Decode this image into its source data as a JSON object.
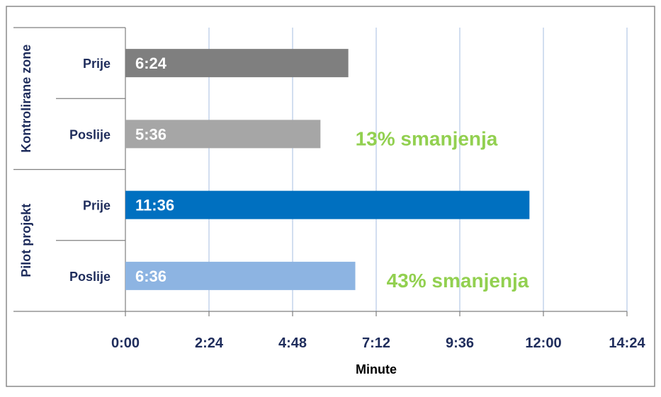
{
  "chart_data": {
    "type": "bar",
    "orientation": "horizontal",
    "x_unit": "minutes",
    "xlabel": "Minute",
    "xlim": [
      0,
      14.4
    ],
    "grid": true,
    "x_ticks": [
      {
        "value": 0,
        "label": "0:00"
      },
      {
        "value": 2.4,
        "label": "2:24"
      },
      {
        "value": 4.8,
        "label": "4:48"
      },
      {
        "value": 7.2,
        "label": "7:12"
      },
      {
        "value": 9.6,
        "label": "9:36"
      },
      {
        "value": 12.0,
        "label": "12:00"
      },
      {
        "value": 14.4,
        "label": "14:24"
      }
    ],
    "groups": [
      {
        "name": "Kontrolirane zone",
        "bars": [
          {
            "category": "Prije",
            "value": 6.4,
            "label": "6:24",
            "color": "#7f7f7f"
          },
          {
            "category": "Poslije",
            "value": 5.6,
            "label": "5:36",
            "color": "#a6a6a6"
          }
        ],
        "annotation": "13% smanjenja"
      },
      {
        "name": "Pilot projekt",
        "bars": [
          {
            "category": "Prije",
            "value": 11.6,
            "label": "11:36",
            "color": "#0070c0"
          },
          {
            "category": "Poslije",
            "value": 6.6,
            "label": "6:36",
            "color": "#8db4e2"
          }
        ],
        "annotation": "43% smanjenja"
      }
    ],
    "colors": {
      "category_text": "#1f2d5c",
      "annotation": "#92d050",
      "bar_label": "#ffffff",
      "gridline": "#b4c7e7",
      "axis": "#7f7f7f"
    }
  }
}
